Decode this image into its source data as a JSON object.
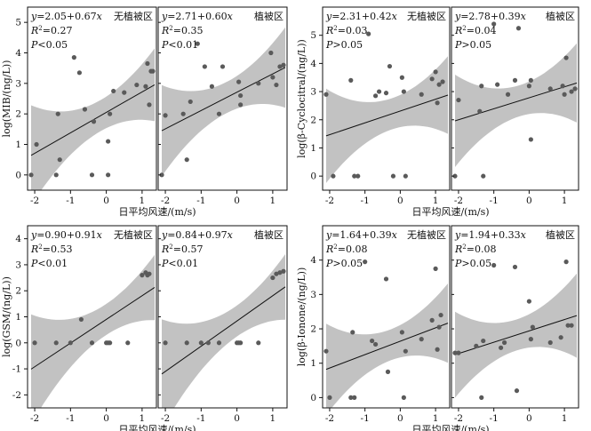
{
  "colors": {
    "points": "#5a5a5a",
    "band": "#c2c2c2",
    "line": "#111111",
    "frame": "#111111"
  },
  "chart_data": [
    {
      "id": "mib",
      "type": "scatter",
      "ylabel": "log(MIB/(ng/L))",
      "xlabel": "日平均风速/(m/s)",
      "xlim": [
        -2.2,
        1.4
      ],
      "ylim": [
        -0.5,
        5.5
      ],
      "xticks": [
        -2,
        -1,
        0,
        1
      ],
      "yticks": [
        0,
        1,
        2,
        3,
        4,
        5
      ],
      "panels": [
        {
          "label": "无植被区",
          "eq_y": "y",
          "eq_rest": "=2.05+0.67",
          "eq_x": "x",
          "r2_r": "R",
          "r2_sup": "2",
          "r2_rest": "=0.27",
          "p_p": "P",
          "p_rest": "<0.05",
          "intercept": 2.05,
          "slope": 0.67,
          "points": [
            [
              -2.1,
              0
            ],
            [
              -1.95,
              1.0
            ],
            [
              -1.4,
              0
            ],
            [
              -1.35,
              2.0
            ],
            [
              -1.3,
              0.5
            ],
            [
              -0.9,
              3.85
            ],
            [
              -0.75,
              3.35
            ],
            [
              -0.6,
              2.15
            ],
            [
              -0.4,
              0
            ],
            [
              -0.35,
              1.75
            ],
            [
              0.05,
              1.1
            ],
            [
              0.05,
              0
            ],
            [
              0.1,
              2.0
            ],
            [
              0.2,
              2.75
            ],
            [
              0.5,
              2.7
            ],
            [
              0.85,
              2.95
            ],
            [
              1.1,
              2.9
            ],
            [
              1.15,
              3.65
            ],
            [
              1.2,
              2.3
            ],
            [
              1.25,
              3.4
            ],
            [
              1.3,
              3.4
            ]
          ]
        },
        {
          "label": "植被区",
          "eq_y": "y",
          "eq_rest": "=2.71+0.60",
          "eq_x": "x",
          "r2_r": "R",
          "r2_sup": "2",
          "r2_rest": "=0.35",
          "p_p": "P",
          "p_rest": "<0.01",
          "intercept": 2.71,
          "slope": 0.6,
          "points": [
            [
              -2.1,
              0
            ],
            [
              -2.0,
              1.95
            ],
            [
              -1.5,
              2.0
            ],
            [
              -1.4,
              0.5
            ],
            [
              -1.3,
              2.4
            ],
            [
              -1.1,
              4.3
            ],
            [
              -0.9,
              3.55
            ],
            [
              -0.7,
              2.9
            ],
            [
              -0.5,
              2.0
            ],
            [
              -0.4,
              3.55
            ],
            [
              0.05,
              3.05
            ],
            [
              0.1,
              2.3
            ],
            [
              0.1,
              2.6
            ],
            [
              0.6,
              3.0
            ],
            [
              0.95,
              4.0
            ],
            [
              1.0,
              3.2
            ],
            [
              1.1,
              2.95
            ],
            [
              1.2,
              3.55
            ],
            [
              1.3,
              3.6
            ]
          ]
        }
      ]
    },
    {
      "id": "cyclocitral",
      "type": "scatter",
      "ylabel": "log(β-Cyclocitral/(ng/L))",
      "xlabel": "日平均风速/(m/s)",
      "xlim": [
        -2.2,
        1.4
      ],
      "ylim": [
        -0.5,
        6.0
      ],
      "xticks": [
        -2,
        -1,
        0,
        1
      ],
      "yticks": [
        0,
        1,
        2,
        3,
        4,
        5
      ],
      "panels": [
        {
          "label": "无植被区",
          "eq_y": "y",
          "eq_rest": "=2.31+0.42",
          "eq_x": "x",
          "r2_r": "R",
          "r2_sup": "2",
          "r2_rest": "=0.03",
          "p_p": "P",
          "p_rest": ">0.05",
          "intercept": 2.31,
          "slope": 0.42,
          "points": [
            [
              -2.1,
              2.9
            ],
            [
              -1.9,
              0
            ],
            [
              -1.4,
              3.4
            ],
            [
              -1.3,
              0
            ],
            [
              -1.2,
              0
            ],
            [
              -0.9,
              5.05
            ],
            [
              -0.7,
              2.85
            ],
            [
              -0.6,
              3.0
            ],
            [
              -0.4,
              2.95
            ],
            [
              -0.3,
              3.9
            ],
            [
              -0.2,
              0
            ],
            [
              0.05,
              3.5
            ],
            [
              0.1,
              3.0
            ],
            [
              0.15,
              0
            ],
            [
              0.6,
              2.9
            ],
            [
              0.9,
              3.45
            ],
            [
              1.0,
              3.7
            ],
            [
              1.05,
              2.6
            ],
            [
              1.1,
              3.25
            ],
            [
              1.2,
              3.35
            ]
          ]
        },
        {
          "label": "植被区",
          "eq_y": "y",
          "eq_rest": "=2.78+0.39",
          "eq_x": "x",
          "r2_r": "R",
          "r2_sup": "2",
          "r2_rest": "=0.04",
          "p_p": "P",
          "p_rest": ">0.05",
          "intercept": 2.78,
          "slope": 0.39,
          "points": [
            [
              -2.1,
              0
            ],
            [
              -2.0,
              2.7
            ],
            [
              -1.4,
              2.3
            ],
            [
              -1.35,
              3.2
            ],
            [
              -1.3,
              0
            ],
            [
              -1.0,
              5.4
            ],
            [
              -0.9,
              3.25
            ],
            [
              -0.6,
              2.9
            ],
            [
              -0.4,
              3.4
            ],
            [
              -0.3,
              5.25
            ],
            [
              0.0,
              3.2
            ],
            [
              0.05,
              3.4
            ],
            [
              0.05,
              1.3
            ],
            [
              0.6,
              3.1
            ],
            [
              0.95,
              3.2
            ],
            [
              1.0,
              2.9
            ],
            [
              1.05,
              4.2
            ],
            [
              1.2,
              3.0
            ],
            [
              1.3,
              3.1
            ]
          ]
        }
      ]
    },
    {
      "id": "gsm",
      "type": "scatter",
      "ylabel": "log(GSM/(ng/L))",
      "xlabel": "日平均风速/(m/s)",
      "xlim": [
        -2.2,
        1.4
      ],
      "ylim": [
        -2.5,
        4.5
      ],
      "xticks": [
        -2,
        -1,
        0,
        1
      ],
      "yticks": [
        -2,
        -1,
        0,
        1,
        2,
        3,
        4
      ],
      "panels": [
        {
          "label": "无植被区",
          "eq_y": "y",
          "eq_rest": "=0.90+0.91",
          "eq_x": "x",
          "r2_r": "R",
          "r2_sup": "2",
          "r2_rest": "=0.53",
          "p_p": "P",
          "p_rest": "<0.01",
          "intercept": 0.9,
          "slope": 0.91,
          "points": [
            [
              -2.0,
              0
            ],
            [
              -1.4,
              0
            ],
            [
              -1.0,
              0
            ],
            [
              -0.7,
              0.9
            ],
            [
              -0.4,
              0
            ],
            [
              0.0,
              0
            ],
            [
              0.05,
              0
            ],
            [
              0.1,
              0
            ],
            [
              0.6,
              0
            ],
            [
              1.0,
              2.6
            ],
            [
              1.1,
              2.7
            ],
            [
              1.15,
              2.6
            ],
            [
              1.2,
              2.65
            ]
          ]
        },
        {
          "label": "植被区",
          "eq_y": "y",
          "eq_rest": "=0.84+0.97",
          "eq_x": "x",
          "r2_r": "R",
          "r2_sup": "2",
          "r2_rest": "=0.57",
          "p_p": "P",
          "p_rest": "<0.01",
          "intercept": 0.84,
          "slope": 0.97,
          "points": [
            [
              -2.0,
              0
            ],
            [
              -1.4,
              0
            ],
            [
              -1.0,
              0
            ],
            [
              -0.8,
              0
            ],
            [
              -0.5,
              0
            ],
            [
              0.0,
              0
            ],
            [
              0.05,
              0
            ],
            [
              0.1,
              0
            ],
            [
              0.6,
              0
            ],
            [
              1.0,
              2.5
            ],
            [
              1.1,
              2.65
            ],
            [
              1.2,
              2.7
            ],
            [
              1.3,
              2.75
            ]
          ]
        }
      ]
    },
    {
      "id": "ionone",
      "type": "scatter",
      "ylabel": "log(β-Ionone/(ng/L))",
      "xlabel": "日平均风速/(m/s)",
      "xlim": [
        -2.2,
        1.4
      ],
      "ylim": [
        -0.3,
        5.0
      ],
      "xticks": [
        -2,
        -1,
        0,
        1
      ],
      "yticks": [
        0,
        1,
        2,
        3,
        4
      ],
      "panels": [
        {
          "label": "无植被区",
          "eq_y": "y",
          "eq_rest": "=1.64+0.39",
          "eq_x": "x",
          "r2_r": "R",
          "r2_sup": "2",
          "r2_rest": "=0.08",
          "p_p": "P",
          "p_rest": ">0.05",
          "intercept": 1.64,
          "slope": 0.39,
          "points": [
            [
              -2.1,
              1.35
            ],
            [
              -2.0,
              0
            ],
            [
              -1.4,
              0
            ],
            [
              -1.3,
              0
            ],
            [
              -1.35,
              1.9
            ],
            [
              -1.0,
              3.95
            ],
            [
              -0.8,
              1.65
            ],
            [
              -0.7,
              1.55
            ],
            [
              -0.4,
              3.45
            ],
            [
              -0.35,
              0.75
            ],
            [
              0.05,
              1.9
            ],
            [
              0.1,
              0
            ],
            [
              0.15,
              1.35
            ],
            [
              0.6,
              1.7
            ],
            [
              0.9,
              2.25
            ],
            [
              1.0,
              3.75
            ],
            [
              1.05,
              1.4
            ],
            [
              1.1,
              2.05
            ],
            [
              1.15,
              2.4
            ]
          ]
        },
        {
          "label": "植被区",
          "eq_y": "y",
          "eq_rest": "=1.94+0.33",
          "eq_x": "x",
          "r2_r": "R",
          "r2_sup": "2",
          "r2_rest": "=0.08",
          "p_p": "P",
          "p_rest": ">0.05",
          "intercept": 1.94,
          "slope": 0.33,
          "points": [
            [
              -2.1,
              1.3
            ],
            [
              -2.0,
              1.3
            ],
            [
              -1.5,
              1.5
            ],
            [
              -1.35,
              0
            ],
            [
              -1.3,
              1.65
            ],
            [
              -1.0,
              3.85
            ],
            [
              -0.8,
              1.45
            ],
            [
              -0.7,
              1.6
            ],
            [
              -0.4,
              3.8
            ],
            [
              -0.35,
              0.2
            ],
            [
              0.0,
              2.8
            ],
            [
              0.05,
              1.7
            ],
            [
              0.1,
              2.05
            ],
            [
              0.6,
              1.6
            ],
            [
              0.9,
              1.75
            ],
            [
              1.05,
              3.95
            ],
            [
              1.1,
              2.1
            ],
            [
              1.2,
              2.1
            ]
          ]
        }
      ]
    }
  ]
}
